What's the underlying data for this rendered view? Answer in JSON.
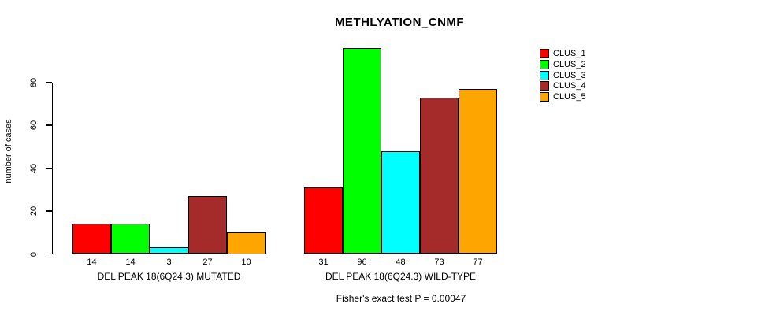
{
  "chart_data": {
    "type": "bar",
    "title": "METHLYATION_CNMF",
    "ylabel": "number of cases",
    "ylim": [
      0,
      80
    ],
    "yticks": [
      0,
      20,
      40,
      60,
      80
    ],
    "grid": false,
    "legend_position": "right-outside",
    "series": [
      {
        "name": "CLUS_1",
        "color": "#FF0000"
      },
      {
        "name": "CLUS_2",
        "color": "#00FF00"
      },
      {
        "name": "CLUS_3",
        "color": "#00FFFF"
      },
      {
        "name": "CLUS_4",
        "color": "#A52A2A"
      },
      {
        "name": "CLUS_5",
        "color": "#FFA500"
      }
    ],
    "groups": [
      {
        "label": "DEL PEAK 18(6Q24.3) MUTATED",
        "values": [
          14,
          14,
          3,
          27,
          10
        ]
      },
      {
        "label": "DEL PEAK 18(6Q24.3) WILD-TYPE",
        "values": [
          31,
          96,
          48,
          73,
          77
        ]
      }
    ],
    "annotation": "Fisher's exact test P = 0.00047"
  }
}
